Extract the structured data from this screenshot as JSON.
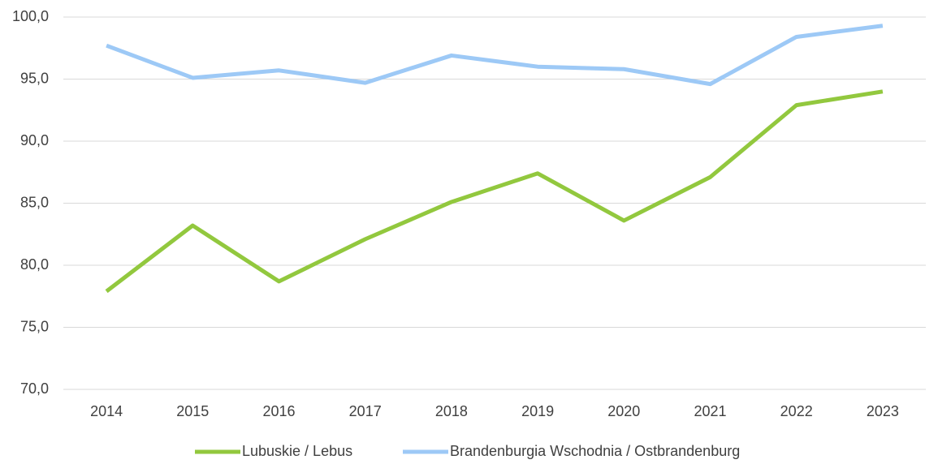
{
  "chart_data": {
    "type": "line",
    "categories": [
      "2014",
      "2015",
      "2016",
      "2017",
      "2018",
      "2019",
      "2020",
      "2021",
      "2022",
      "2023"
    ],
    "series": [
      {
        "name": "Lubuskie / Lebus",
        "color": "#92c83e",
        "values": [
          77.9,
          83.2,
          78.7,
          82.1,
          85.1,
          87.4,
          83.6,
          87.1,
          92.9,
          94.0
        ]
      },
      {
        "name": "Brandenburgia Wschodnia / Ostbrandenburg",
        "color": "#9dc9f6",
        "values": [
          97.7,
          95.1,
          95.7,
          94.7,
          96.9,
          96.0,
          95.8,
          94.6,
          98.4,
          99.3
        ]
      }
    ],
    "ylim": [
      70,
      100
    ],
    "yticks": [
      {
        "value": 70,
        "label": "70,0"
      },
      {
        "value": 75,
        "label": "75,0"
      },
      {
        "value": 80,
        "label": "80,0"
      },
      {
        "value": 85,
        "label": "85,0"
      },
      {
        "value": 90,
        "label": "90,0"
      },
      {
        "value": 95,
        "label": "95,0"
      },
      {
        "value": 100,
        "label": "100,0"
      }
    ],
    "grid": true,
    "legend": "bottom"
  }
}
